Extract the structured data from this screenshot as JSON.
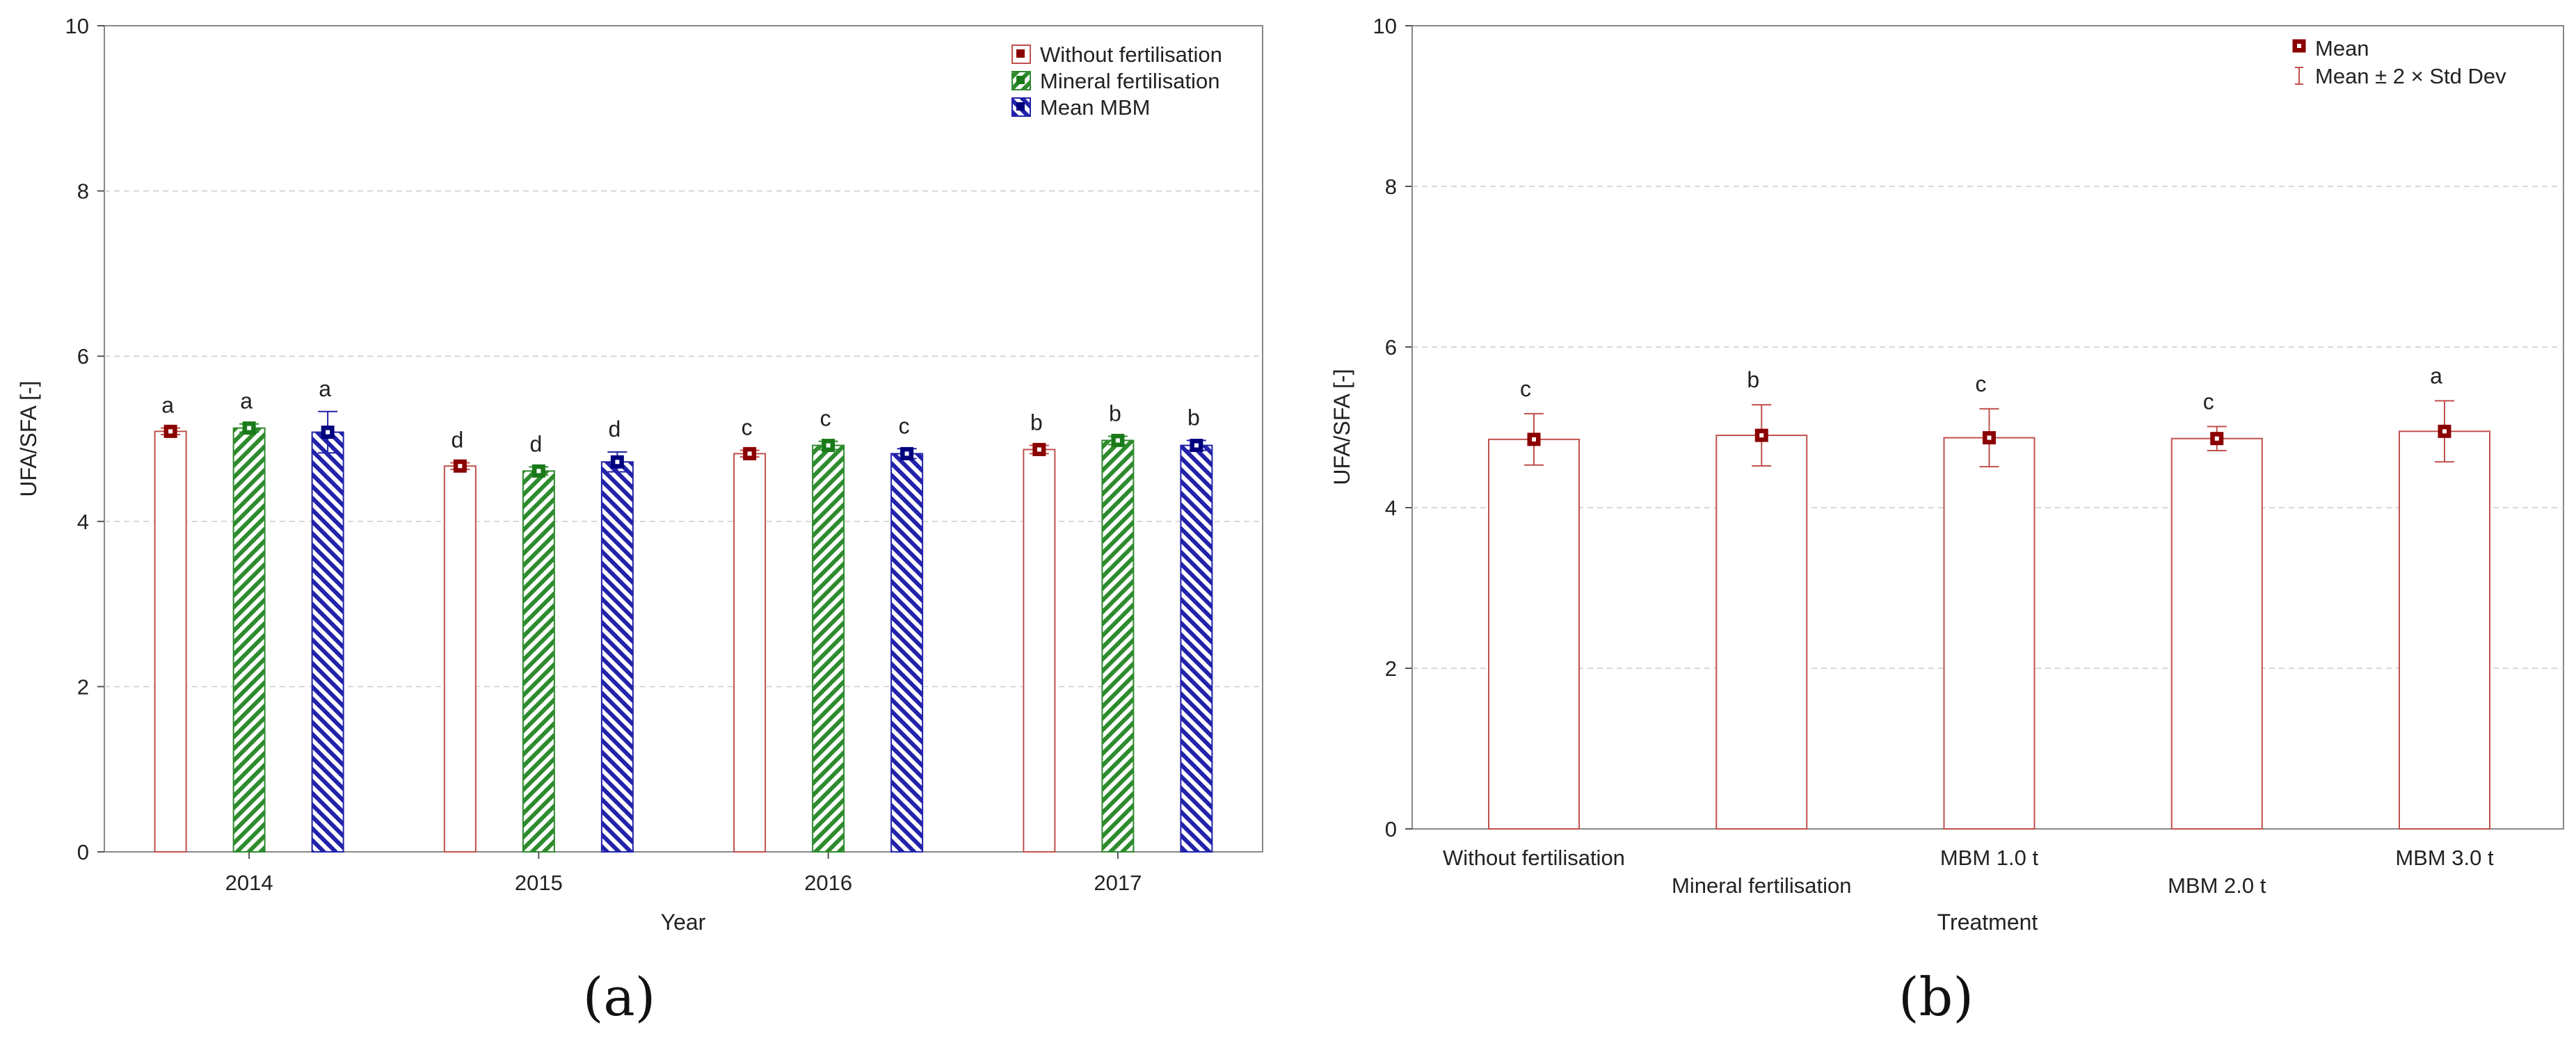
{
  "chart_data": [
    {
      "type": "bar",
      "panel_label": "(a)",
      "xlabel": "Year",
      "ylabel": "UFA/SFA [-]",
      "ylim": [
        0,
        10
      ],
      "yticks": [
        "0",
        "2",
        "4",
        "6",
        "8",
        "10"
      ],
      "categories": [
        "2014",
        "2015",
        "2016",
        "2017"
      ],
      "series": [
        {
          "name": "Without fertilisation",
          "color": "#8b0000",
          "bar_color": "#c0504d",
          "pattern": "none",
          "values": [
            5.09,
            4.67,
            4.82,
            4.87
          ],
          "error": [
            0.04,
            0.04,
            0.04,
            0.05
          ],
          "letters": [
            "a",
            "d",
            "c",
            "b"
          ]
        },
        {
          "name": "Mineral fertilisation",
          "color": "#1a7a1a",
          "bar_color": "#2e8b2e",
          "pattern": "diag",
          "values": [
            5.13,
            4.61,
            4.92,
            4.98
          ],
          "error": [
            0.05,
            0.05,
            0.05,
            0.05
          ],
          "letters": [
            "a",
            "d",
            "c",
            "b"
          ]
        },
        {
          "name": "Mean MBM",
          "color": "#00007f",
          "bar_color": "#2222aa",
          "pattern": "diag-rev",
          "values": [
            5.08,
            4.72,
            4.82,
            4.92
          ],
          "error": [
            0.25,
            0.12,
            0.06,
            0.06
          ],
          "letters": [
            "a",
            "d",
            "c",
            "b"
          ]
        }
      ]
    },
    {
      "type": "bar",
      "panel_label": "(b)",
      "xlabel": "Treatment",
      "ylabel": "UFA/SFA [-]",
      "ylim": [
        0,
        10
      ],
      "yticks": [
        "0",
        "2",
        "4",
        "6",
        "8",
        "10"
      ],
      "categories": [
        "Without fertilisation",
        "Mineral fertilisation",
        "MBM  1.0 t",
        "MBM  2.0 t",
        "MBM  3.0 t"
      ],
      "values": [
        4.85,
        4.9,
        4.87,
        4.86,
        4.95
      ],
      "error": [
        0.32,
        0.38,
        0.36,
        0.15,
        0.38
      ],
      "letters": [
        "c",
        "b",
        "c",
        "c",
        "a"
      ],
      "color": "#8b0000",
      "bar_color": "#c0504d",
      "legend": [
        "Mean",
        "Mean ± 2 × Std Dev"
      ]
    }
  ]
}
